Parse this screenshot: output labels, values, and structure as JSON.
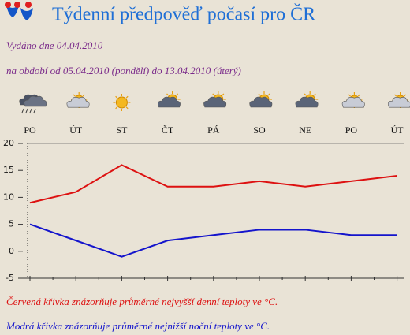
{
  "header": {
    "title": "Týdenní předpověď počasí pro ČR",
    "issued": "Vydáno dne 04.04.2010",
    "period": "na období od 05.04.2010 (pondělí) do 13.04.2010 (úterý)"
  },
  "chart_data": {
    "type": "line",
    "categories": [
      "PO",
      "ÚT",
      "ST",
      "ČT",
      "PÁ",
      "SO",
      "NE",
      "PO",
      "ÚT"
    ],
    "series": [
      {
        "color": "#dd1111",
        "values": [
          9,
          11,
          16,
          12,
          12,
          13,
          12,
          13,
          14
        ]
      },
      {
        "color": "#1414cc",
        "values": [
          5,
          2,
          -1,
          2,
          3,
          4,
          4,
          3,
          3
        ]
      }
    ],
    "ylim": [
      -5,
      20
    ],
    "yticks": [
      -5,
      0,
      5,
      10,
      15,
      20
    ],
    "grid": false
  },
  "notes": [
    {
      "text": "Červená křivka znázorňuje průměrné nejvyšší denní teploty ve °C.",
      "color": "#dd1111"
    },
    {
      "text": "Modrá křivka znázorňuje průměrné nejnižší noční teploty ve °C.",
      "color": "#1414cc"
    }
  ]
}
